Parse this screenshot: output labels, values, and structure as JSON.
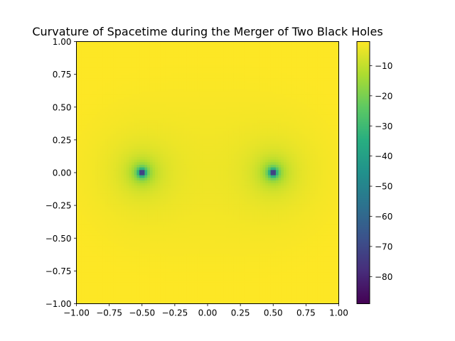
{
  "chart_data": {
    "type": "heatmap",
    "title": "Curvature of Spacetime during the Merger of Two Black Holes",
    "xlabel": "",
    "ylabel": "",
    "xlim": [
      -1.0,
      1.0
    ],
    "ylim": [
      -1.0,
      1.0
    ],
    "x_ticks": [
      -1.0,
      -0.75,
      -0.5,
      -0.25,
      0.0,
      0.25,
      0.5,
      0.75,
      1.0
    ],
    "x_tick_labels": [
      "−1.00",
      "−0.75",
      "−0.50",
      "−0.25",
      "0.00",
      "0.25",
      "0.50",
      "0.75",
      "1.00"
    ],
    "y_ticks": [
      1.0,
      0.75,
      0.5,
      0.25,
      0.0,
      -0.25,
      -0.5,
      -0.75,
      -1.0
    ],
    "y_tick_labels": [
      "1.00",
      "0.75",
      "0.50",
      "0.25",
      "0.00",
      "−0.25",
      "−0.50",
      "−0.75",
      "−1.00"
    ],
    "grid": false,
    "colormap": "viridis",
    "colorbar": {
      "range": [
        -89,
        -2
      ],
      "ticks": [
        -10,
        -20,
        -30,
        -40,
        -50,
        -60,
        -70,
        -80
      ],
      "tick_labels": [
        "−10",
        "−20",
        "−30",
        "−40",
        "−50",
        "−60",
        "−70",
        "−80"
      ]
    },
    "sources": [
      {
        "x": -0.5,
        "y": 0.0
      },
      {
        "x": 0.5,
        "y": 0.0
      }
    ],
    "field": "-1/|r - r1| - 1/|r - r2|",
    "grid_resolution": 100
  }
}
